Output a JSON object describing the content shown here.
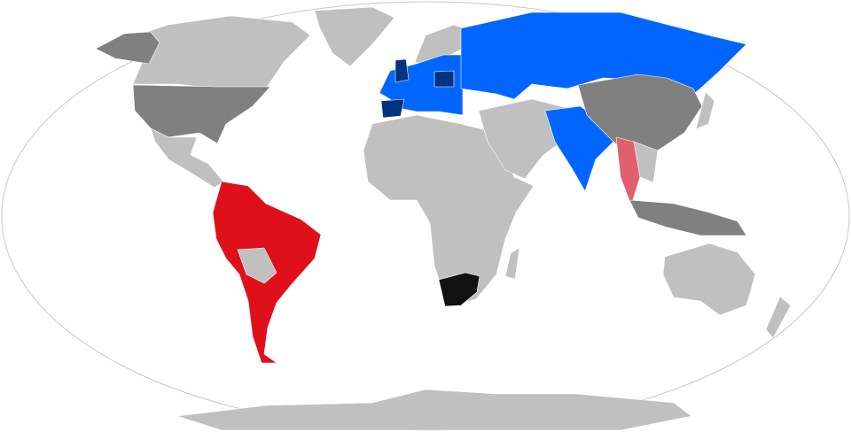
{
  "map": {
    "projection": "Robinson",
    "colors": {
      "ocean": "#ffffff",
      "outline": "#c8c8c8",
      "other": "#c0c0c0",
      "gray_dark": "#808080",
      "blue": "#0066ff",
      "blue_dark": "#003380",
      "red": "#e0101a",
      "pink": "#e06070",
      "black": "#111111"
    },
    "regions": {
      "greenland": "other",
      "canada": "other",
      "alaska": "gray_dark",
      "usa": "gray_dark",
      "central-america": "other",
      "south-america": "red",
      "bolivia-paraguay": "other",
      "africa": "other",
      "south-africa": "black",
      "madagascar": "other",
      "europe": "blue",
      "scandinavia": "other",
      "iberia": "blue_dark",
      "uk": "blue_dark",
      "poland": "blue_dark",
      "russia-central-asia": "blue",
      "middle-east": "other",
      "india": "blue",
      "china": "gray_dark",
      "myanmar-thailand": "pink",
      "southeast-asia": "other",
      "indonesia-philippines": "gray_dark",
      "japan": "other",
      "australia": "other",
      "new-zealand": "other",
      "antarctica": "other"
    }
  }
}
